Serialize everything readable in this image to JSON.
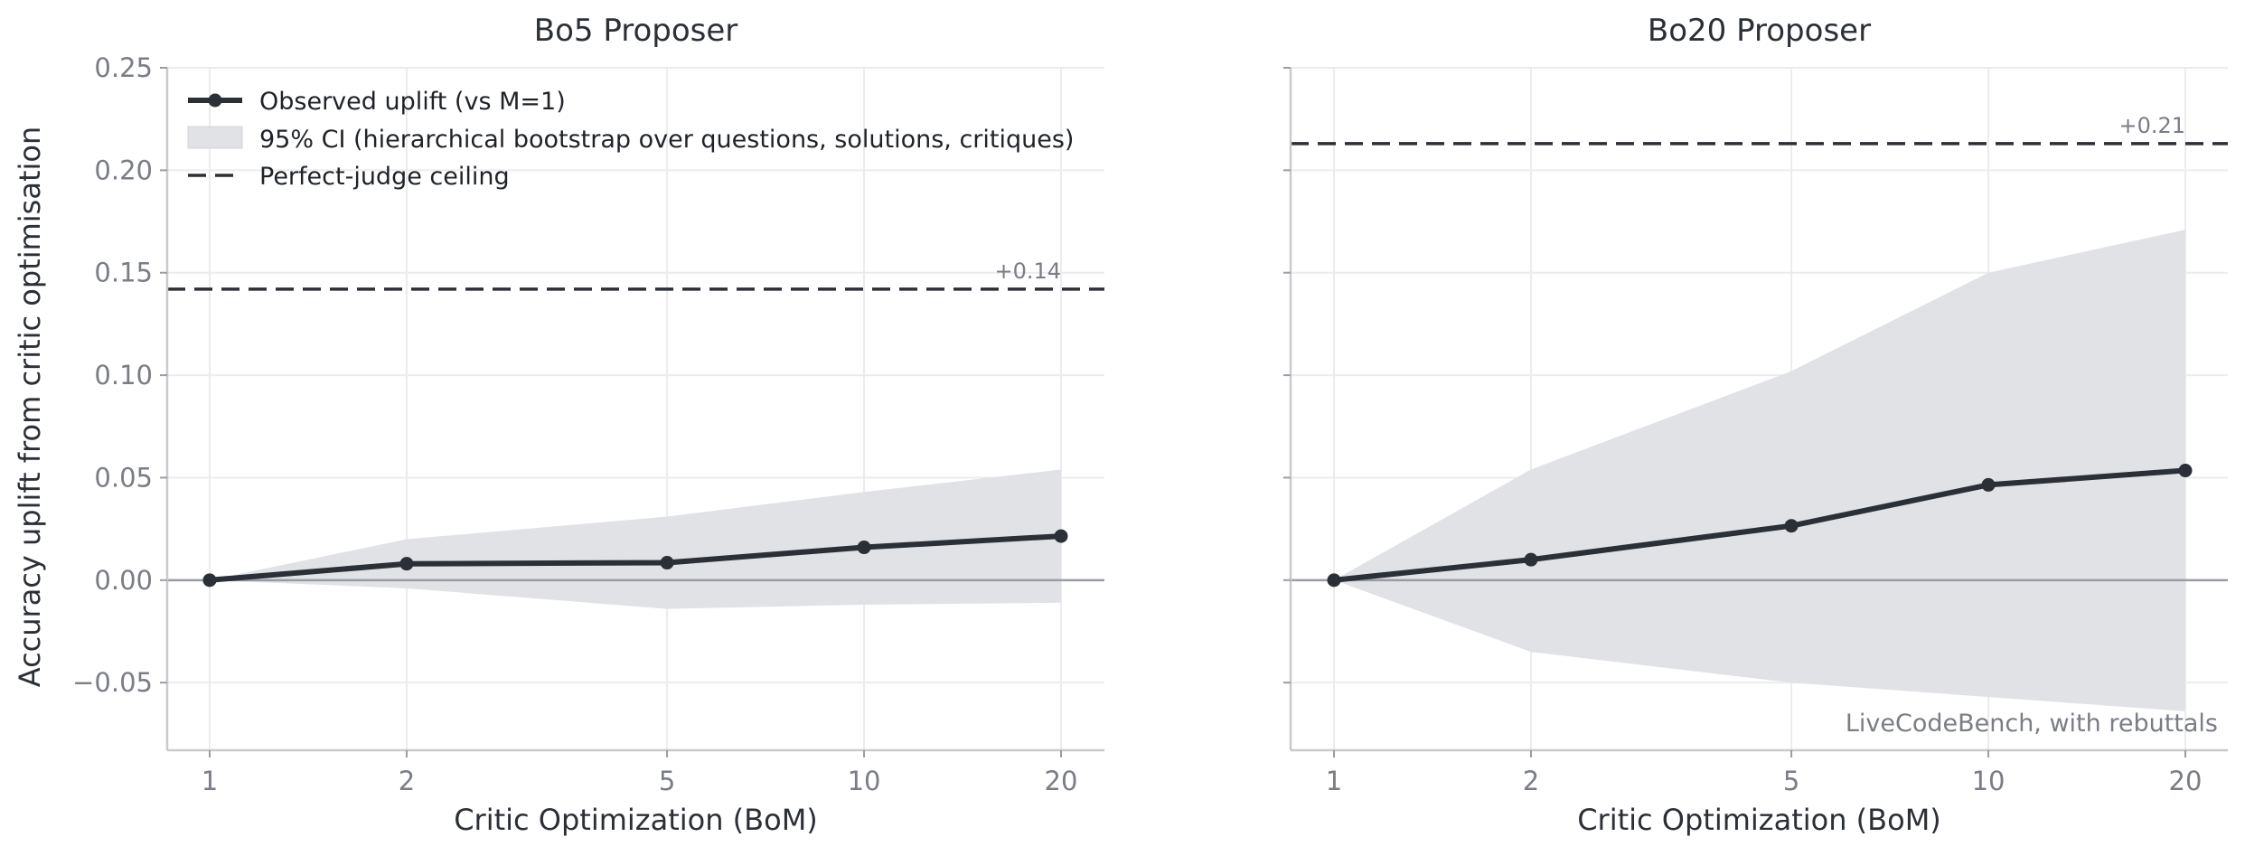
{
  "figure": {
    "shared_ylabel": "Accuracy uplift from critic optimisation",
    "legend": {
      "line_label": "Observed uplift (vs M=1)",
      "band_label": "95% CI (hierarchical bootstrap over questions, solutions, critiques)",
      "ceiling_label": "Perfect-judge ceiling"
    }
  },
  "colors": {
    "line": "#2b2f36",
    "band": "#e1e2e6",
    "ceiling": "#2b2f36",
    "zero": "#9a9ca3",
    "grid": "#ececee",
    "axis": "#c9cace"
  },
  "chart_data": [
    {
      "type": "line",
      "title": "Bo5 Proposer",
      "xlabel": "Critic Optimization (BoM)",
      "ylabel": "Accuracy uplift from critic optimisation",
      "x_scale": "log",
      "x": [
        1,
        2,
        5,
        10,
        20
      ],
      "x_tick_labels": [
        "1",
        "2",
        "5",
        "10",
        "20"
      ],
      "ylim": [
        -0.083,
        0.25
      ],
      "y_ticks": [
        -0.05,
        0.0,
        0.05,
        0.1,
        0.15,
        0.2,
        0.25
      ],
      "y_tick_labels": [
        "−0.05",
        "0.00",
        "0.05",
        "0.10",
        "0.15",
        "0.20",
        "0.25"
      ],
      "grid": true,
      "legend_position": "upper-left",
      "series": [
        {
          "name": "Observed uplift (vs M=1)",
          "values": [
            0.0,
            0.008,
            0.0085,
            0.016,
            0.0215
          ]
        }
      ],
      "ci_band": {
        "name": "95% CI (hierarchical bootstrap over questions, solutions, critiques)",
        "lower": [
          0.0,
          -0.004,
          -0.014,
          -0.012,
          -0.011
        ],
        "upper": [
          0.0,
          0.02,
          0.031,
          0.043,
          0.054
        ]
      },
      "ceiling": {
        "name": "Perfect-judge ceiling",
        "value": 0.142,
        "label": "+0.14"
      },
      "annotation": ""
    },
    {
      "type": "line",
      "title": "Bo20 Proposer",
      "xlabel": "Critic Optimization (BoM)",
      "ylabel": "",
      "x_scale": "log",
      "x": [
        1,
        2,
        5,
        10,
        20
      ],
      "x_tick_labels": [
        "1",
        "2",
        "5",
        "10",
        "20"
      ],
      "ylim": [
        -0.083,
        0.25
      ],
      "y_ticks": [
        -0.05,
        0.0,
        0.05,
        0.1,
        0.15,
        0.2,
        0.25
      ],
      "y_tick_labels": [],
      "grid": true,
      "series": [
        {
          "name": "Observed uplift (vs M=1)",
          "values": [
            0.0,
            0.01,
            0.0265,
            0.0465,
            0.0535
          ]
        }
      ],
      "ci_band": {
        "name": "95% CI (hierarchical bootstrap over questions, solutions, critiques)",
        "lower": [
          0.0,
          -0.035,
          -0.05,
          -0.057,
          -0.064
        ],
        "upper": [
          0.0,
          0.054,
          0.102,
          0.15,
          0.171
        ]
      },
      "ceiling": {
        "name": "Perfect-judge ceiling",
        "value": 0.213,
        "label": "+0.21"
      },
      "annotation": "LiveCodeBench, with rebuttals"
    }
  ]
}
